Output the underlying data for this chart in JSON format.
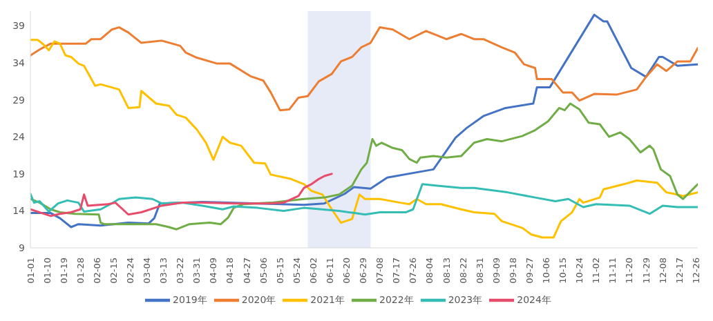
{
  "chart_data": {
    "type": "line",
    "legend": "bottom",
    "ylim": [
      9,
      41
    ],
    "yticks": [
      9,
      14,
      19,
      24,
      29,
      34,
      39
    ],
    "xlim": [
      "--01-01",
      "--12-27"
    ],
    "xticks": [
      {
        "value": "--01-01",
        "label": "01-01"
      },
      {
        "value": "--01-10",
        "label": "01-10"
      },
      {
        "value": "--01-19",
        "label": "01-19"
      },
      {
        "value": "--01-28",
        "label": "01-28"
      },
      {
        "value": "--02-06",
        "label": "02-06"
      },
      {
        "value": "--02-15",
        "label": "02-15"
      },
      {
        "value": "--02-24",
        "label": "02-24"
      },
      {
        "value": "--03-04",
        "label": "03-04"
      },
      {
        "value": "--03-13",
        "label": "03-13"
      },
      {
        "value": "--03-22",
        "label": "03-22"
      },
      {
        "value": "--03-31",
        "label": "03-31"
      },
      {
        "value": "--04-09",
        "label": "04-09"
      },
      {
        "value": "--04-18",
        "label": "04-18"
      },
      {
        "value": "--04-27",
        "label": "04-27"
      },
      {
        "value": "--05-06",
        "label": "05-06"
      },
      {
        "value": "--05-15",
        "label": "05-15"
      },
      {
        "value": "--05-24",
        "label": "05-24"
      },
      {
        "value": "--06-02",
        "label": "06-02"
      },
      {
        "value": "--06-11",
        "label": "06-11"
      },
      {
        "value": "--06-20",
        "label": "06-20"
      },
      {
        "value": "--06-29",
        "label": "06-29"
      },
      {
        "value": "--07-08",
        "label": "07-08"
      },
      {
        "value": "--07-17",
        "label": "07-17"
      },
      {
        "value": "--07-26",
        "label": "07-26"
      },
      {
        "value": "--08-04",
        "label": "08-04"
      },
      {
        "value": "--08-13",
        "label": "08-13"
      },
      {
        "value": "--08-22",
        "label": "08-22"
      },
      {
        "value": "--08-31",
        "label": "08-31"
      },
      {
        "value": "--09-09",
        "label": "09-09"
      },
      {
        "value": "--09-18",
        "label": "09-18"
      },
      {
        "value": "--09-27",
        "label": "09-27"
      },
      {
        "value": "--10-06",
        "label": "10-06"
      },
      {
        "value": "--10-15",
        "label": "10-15"
      },
      {
        "value": "--10-24",
        "label": "10-24"
      },
      {
        "value": "--11-02",
        "label": "11-02"
      },
      {
        "value": "--11-11",
        "label": "11-11"
      },
      {
        "value": "--11-20",
        "label": "11-20"
      },
      {
        "value": "--11-29",
        "label": "11-29"
      },
      {
        "value": "--12-08",
        "label": "12-08"
      },
      {
        "value": "--12-17",
        "label": "12-17"
      },
      {
        "value": "--12-26",
        "label": "12-26"
      }
    ],
    "bands": [
      {
        "axis": "x",
        "from": "--05-30",
        "to": "--07-03",
        "color": "#e6ebf7"
      }
    ],
    "series": [
      {
        "name": "2019年",
        "color": "#4472c4",
        "x": [
          "--01-01",
          "--01-12",
          "--01-17",
          "--01-23",
          "--01-27",
          "--02-08",
          "--02-23",
          "--03-05",
          "--03-08",
          "--03-11",
          "--04-03",
          "--05-03",
          "--05-28",
          "--06-08",
          "--06-19",
          "--06-24",
          "--07-03",
          "--07-12",
          "--08-06",
          "--08-18",
          "--08-24",
          "--09-02",
          "--09-14",
          "--09-29",
          "--10-01",
          "--10-08",
          "--11-01",
          "--11-06",
          "--11-08",
          "--11-21",
          "--11-29",
          "--12-06",
          "--12-08",
          "--12-16",
          "--12-27"
        ],
        "values": [
          13.7,
          13.7,
          13.0,
          11.8,
          12.2,
          12.0,
          12.4,
          12.3,
          13.0,
          15.0,
          15.2,
          15.0,
          14.8,
          15.0,
          16.3,
          17.2,
          17.0,
          18.5,
          19.6,
          23.9,
          25.2,
          26.8,
          27.9,
          28.5,
          30.7,
          30.7,
          40.5,
          39.6,
          39.6,
          33.3,
          32.1,
          34.8,
          34.8,
          33.6,
          33.8
        ]
      },
      {
        "name": "2020年",
        "color": "#ed7d31",
        "x": [
          "--01-01",
          "--01-06",
          "--01-12",
          "--01-31",
          "--02-03",
          "--02-08",
          "--02-14",
          "--02-18",
          "--02-23",
          "--03-01",
          "--03-12",
          "--03-22",
          "--03-25",
          "--03-31",
          "--04-11",
          "--04-18",
          "--04-29",
          "--05-06",
          "--05-10",
          "--05-15",
          "--05-20",
          "--05-25",
          "--05-30",
          "--06-05",
          "--06-12",
          "--06-17",
          "--06-23",
          "--06-28",
          "--07-03",
          "--07-08",
          "--07-15",
          "--07-24",
          "--08-02",
          "--08-13",
          "--08-21",
          "--08-28",
          "--09-02",
          "--09-12",
          "--09-19",
          "--09-24",
          "--09-30",
          "--10-01",
          "--10-09",
          "--10-15",
          "--10-20",
          "--10-24",
          "--11-01",
          "--11-13",
          "--11-24",
          "--11-29",
          "--12-05",
          "--12-10",
          "--12-16",
          "--12-23",
          "--12-27"
        ],
        "values": [
          35.0,
          35.8,
          36.6,
          36.6,
          37.2,
          37.2,
          38.5,
          38.8,
          38.1,
          36.7,
          37.0,
          36.3,
          35.4,
          34.7,
          33.9,
          33.9,
          32.2,
          31.6,
          30.0,
          27.6,
          27.7,
          29.3,
          29.5,
          31.5,
          32.5,
          34.2,
          34.8,
          36.1,
          36.7,
          38.8,
          38.5,
          37.2,
          38.3,
          37.2,
          37.9,
          37.2,
          37.2,
          36.1,
          35.4,
          33.8,
          33.3,
          31.8,
          31.8,
          30.0,
          30.0,
          28.9,
          29.8,
          29.7,
          30.4,
          32.1,
          33.8,
          32.9,
          34.2,
          34.2,
          36.0
        ]
      },
      {
        "name": "2021年",
        "color": "#ffc000",
        "x": [
          "--01-01",
          "--01-05",
          "--01-08",
          "--01-11",
          "--01-14",
          "--01-17",
          "--01-20",
          "--01-23",
          "--01-27",
          "--01-30",
          "--02-05",
          "--02-08",
          "--02-18",
          "--02-23",
          "--02-29",
          "--03-01",
          "--03-09",
          "--03-16",
          "--03-20",
          "--03-25",
          "--03-31",
          "--04-05",
          "--04-09",
          "--04-14",
          "--04-18",
          "--04-24",
          "--05-01",
          "--05-07",
          "--05-10",
          "--05-21",
          "--05-28",
          "--06-01",
          "--06-07",
          "--06-12",
          "--06-17",
          "--06-23",
          "--06-27",
          "--06-30",
          "--07-08",
          "--07-19",
          "--07-24",
          "--07-28",
          "--08-02",
          "--08-10",
          "--08-21",
          "--08-28",
          "--09-08",
          "--09-12",
          "--09-23",
          "--09-28",
          "--10-04",
          "--10-10",
          "--10-14",
          "--10-20",
          "--10-24",
          "--10-26",
          "--11-04",
          "--11-06",
          "--11-17",
          "--11-24",
          "--12-05",
          "--12-10",
          "--12-14",
          "--12-19",
          "--12-27"
        ],
        "values": [
          37.1,
          37.1,
          36.5,
          35.7,
          36.9,
          36.6,
          35.0,
          34.8,
          33.9,
          33.6,
          30.9,
          31.1,
          30.4,
          27.9,
          28.0,
          30.2,
          28.5,
          28.2,
          27.0,
          26.6,
          25.0,
          23.2,
          20.9,
          24.0,
          23.2,
          22.8,
          20.5,
          20.4,
          18.9,
          18.3,
          17.6,
          16.7,
          16.2,
          14.2,
          12.4,
          12.9,
          16.2,
          15.6,
          15.6,
          15.1,
          14.9,
          15.6,
          14.9,
          14.9,
          14.2,
          13.8,
          13.6,
          12.6,
          11.7,
          10.8,
          10.4,
          10.4,
          12.6,
          13.8,
          15.6,
          15.1,
          15.8,
          16.9,
          17.6,
          18.1,
          17.8,
          16.5,
          16.3,
          16.0,
          16.5
        ]
      },
      {
        "name": "2022年",
        "color": "#70ad47",
        "x": [
          "--01-01",
          "--01-06",
          "--01-12",
          "--01-17",
          "--01-25",
          "--02-07",
          "--02-08",
          "--02-10",
          "--02-27",
          "--03-09",
          "--03-16",
          "--03-20",
          "--03-27",
          "--04-07",
          "--04-13",
          "--04-17",
          "--04-20",
          "--04-25",
          "--05-10",
          "--05-28",
          "--06-08",
          "--06-16",
          "--06-23",
          "--06-28",
          "--07-01",
          "--07-04",
          "--07-06",
          "--07-09",
          "--07-15",
          "--07-20",
          "--07-24",
          "--07-28",
          "--07-30",
          "--08-06",
          "--08-13",
          "--08-21",
          "--08-28",
          "--09-04",
          "--09-12",
          "--09-23",
          "--09-30",
          "--10-07",
          "--10-13",
          "--10-16",
          "--10-19",
          "--10-24",
          "--10-29",
          "--11-04",
          "--11-09",
          "--11-15",
          "--11-20",
          "--11-26",
          "--12-01",
          "--12-03",
          "--12-07",
          "--12-12",
          "--12-16",
          "--12-19",
          "--12-25",
          "--12-27"
        ],
        "values": [
          15.6,
          15.1,
          14.2,
          13.8,
          13.6,
          13.5,
          12.4,
          12.2,
          12.2,
          12.2,
          11.8,
          11.5,
          12.2,
          12.4,
          12.2,
          13.1,
          14.4,
          14.9,
          15.1,
          15.6,
          15.8,
          16.2,
          17.4,
          19.6,
          20.5,
          23.7,
          22.8,
          23.2,
          22.5,
          22.2,
          21.0,
          20.5,
          21.2,
          21.4,
          21.2,
          21.4,
          23.2,
          23.7,
          23.4,
          24.1,
          24.9,
          26.1,
          27.9,
          27.6,
          28.5,
          27.7,
          25.9,
          25.7,
          24.0,
          24.6,
          23.7,
          21.9,
          22.8,
          22.3,
          19.6,
          18.7,
          16.2,
          15.6,
          17.1,
          17.6
        ]
      },
      {
        "name": "2023年",
        "color": "#33bdb5",
        "x": [
          "--01-01",
          "--01-03",
          "--01-06",
          "--01-11",
          "--01-16",
          "--01-21",
          "--01-27",
          "--01-30",
          "--02-08",
          "--02-14",
          "--02-18",
          "--02-27",
          "--03-07",
          "--03-12",
          "--03-23",
          "--04-03",
          "--04-14",
          "--04-20",
          "--05-03",
          "--05-17",
          "--05-28",
          "--06-16",
          "--06-30",
          "--07-08",
          "--07-22",
          "--07-26",
          "--07-31",
          "--08-08",
          "--08-21",
          "--08-28",
          "--09-15",
          "--09-30",
          "--10-11",
          "--10-18",
          "--10-26",
          "--11-02",
          "--11-20",
          "--12-01",
          "--12-08",
          "--12-16",
          "--12-27"
        ],
        "values": [
          16.3,
          15.1,
          15.3,
          13.9,
          15.0,
          15.4,
          15.1,
          13.9,
          14.2,
          15.0,
          15.6,
          15.8,
          15.6,
          15.0,
          15.1,
          14.7,
          14.2,
          14.6,
          14.4,
          14.0,
          14.4,
          14.0,
          13.5,
          13.8,
          13.8,
          14.2,
          17.6,
          17.4,
          17.1,
          17.1,
          16.5,
          15.8,
          15.3,
          15.6,
          14.5,
          14.9,
          14.7,
          13.6,
          14.7,
          14.5,
          14.5
        ]
      },
      {
        "name": "2024年",
        "color": "#e84c6b",
        "x": [
          "--01-01",
          "--01-12",
          "--01-17",
          "--01-23",
          "--01-28",
          "--01-30",
          "--02-01",
          "--02-12",
          "--02-16",
          "--02-23",
          "--03-01",
          "--03-12",
          "--03-23",
          "--04-03",
          "--04-20",
          "--05-10",
          "--05-17",
          "--05-25",
          "--05-28",
          "--06-01",
          "--06-05",
          "--06-08",
          "--06-12"
        ],
        "values": [
          14.2,
          13.3,
          13.6,
          13.8,
          14.2,
          16.2,
          14.7,
          14.9,
          15.1,
          13.5,
          13.8,
          14.7,
          15.1,
          15.1,
          15.0,
          15.0,
          15.1,
          16.0,
          17.1,
          17.6,
          18.3,
          18.7,
          19.0
        ]
      }
    ]
  }
}
